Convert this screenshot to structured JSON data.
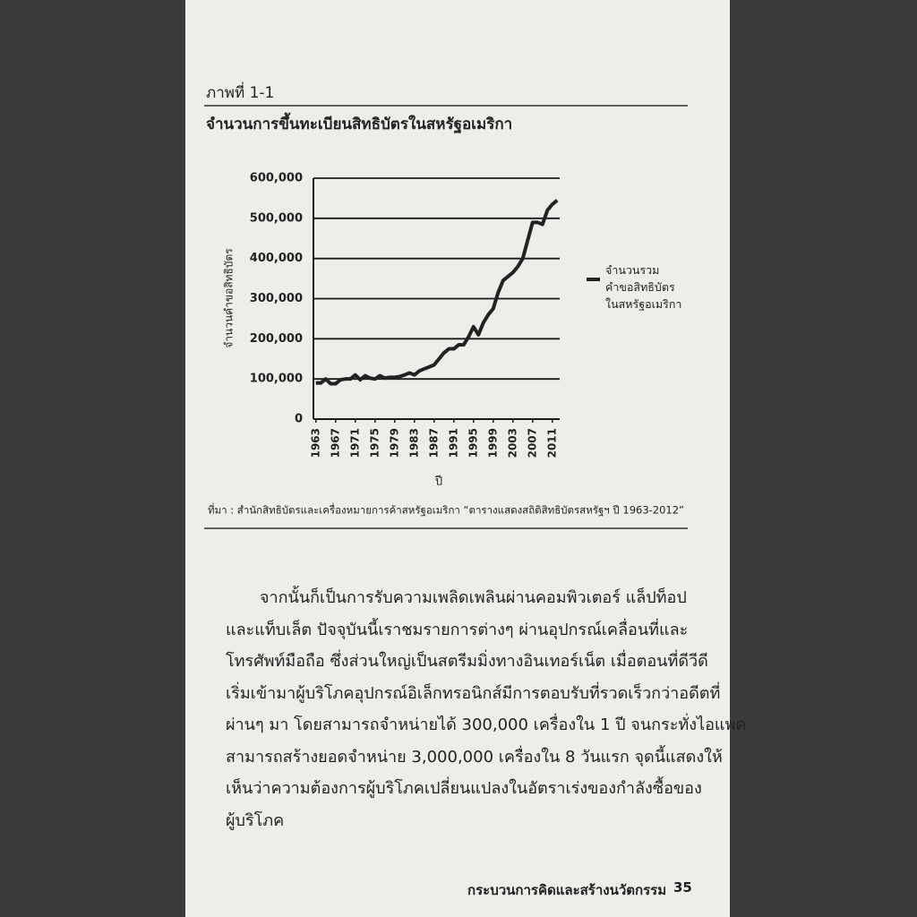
{
  "header": {
    "figure_label": "ภาพที่ 1-1",
    "title": "จำนวนการขึ้นทะเบียนสิทธิบัตรในสหรัฐอเมริกา"
  },
  "chart_data": {
    "type": "line",
    "y_label": "จำนวนคำขอสิทธิบัตร",
    "x_label": "ปี",
    "x": [
      1963,
      1964,
      1965,
      1966,
      1967,
      1968,
      1969,
      1970,
      1971,
      1972,
      1973,
      1974,
      1975,
      1976,
      1977,
      1978,
      1979,
      1980,
      1981,
      1982,
      1983,
      1984,
      1985,
      1986,
      1987,
      1988,
      1989,
      1990,
      1991,
      1992,
      1993,
      1994,
      1995,
      1996,
      1997,
      1998,
      1999,
      2000,
      2001,
      2002,
      2003,
      2004,
      2005,
      2006,
      2007,
      2008,
      2009,
      2010,
      2011,
      2012
    ],
    "series": [
      {
        "name": "จำนวนรวม\nคำขอสิทธิบัตร\nในสหรัฐอเมริกา",
        "color": "#222222",
        "values": [
          90000,
          90000,
          100000,
          88000,
          88000,
          98000,
          100000,
          100000,
          110000,
          98000,
          108000,
          102000,
          100000,
          108000,
          102000,
          104000,
          104000,
          106000,
          110000,
          115000,
          110000,
          120000,
          125000,
          130000,
          135000,
          150000,
          165000,
          175000,
          175000,
          185000,
          185000,
          205000,
          230000,
          210000,
          240000,
          260000,
          275000,
          315000,
          345000,
          355000,
          365000,
          380000,
          400000,
          445000,
          490000,
          490000,
          485000,
          520000,
          535000,
          545000
        ]
      }
    ],
    "xlim": [
      1962.5,
      2012.5
    ],
    "xticks": [
      1963,
      1967,
      1971,
      1975,
      1979,
      1983,
      1987,
      1991,
      1995,
      1999,
      2003,
      2007,
      2011
    ],
    "ylim": [
      0,
      600000
    ],
    "yticks": [
      0,
      {
        "value": 100000,
        "label": "100,000"
      },
      {
        "value": 200000,
        "label": "200,000"
      },
      {
        "value": 300000,
        "label": "300,000"
      },
      {
        "value": 400000,
        "label": "400,000"
      },
      {
        "value": 500000,
        "label": "500,000"
      },
      {
        "value": 600000,
        "label": "600,000"
      }
    ],
    "grid": true
  },
  "source": "ที่มา : สำนักสิทธิบัตรและเครื่องหมายการค้าสหรัฐอเมริกา “ตารางแสดงสถิติสิทธิบัตรสหรัฐฯ ปี 1963-2012”",
  "body": {
    "lines": [
      "จากนั้นก็เป็นการรับความเพลิดเพลินผ่านคอมพิวเตอร์ แล็ปท็อป",
      "และแท็บเล็ต ปัจจุบันนี้เราชมรายการต่างๆ ผ่านอุปกรณ์เคลื่อนที่และ",
      "โทรศัพท์มือถือ ซึ่งส่วนใหญ่เป็นสตรีมมิ่งทางอินเทอร์เน็ต เมื่อตอนที่ดีวีดี",
      "เริ่มเข้ามาผู้บริโภคอุปกรณ์อิเล็กทรอนิกส์มีการตอบรับที่รวดเร็วกว่าอดีตที่",
      "ผ่านๆ มา โดยสามารถจำหน่ายได้ 300,000 เครื่องใน 1 ปี จนกระทั่งไอแพด",
      "สามารถสร้างยอดจำหน่าย 3,000,000 เครื่องใน 8 วันแรก จุดนี้แสดงให้",
      "เห็นว่าความต้องการผู้บริโภคเปลี่ยนแปลงในอัตราเร่งของกำลังซื้อของ",
      "ผู้บริโภค"
    ]
  },
  "footer": {
    "book_title": "กระบวนการคิดและสร้างนวัตกรรม",
    "page_number": "35"
  }
}
